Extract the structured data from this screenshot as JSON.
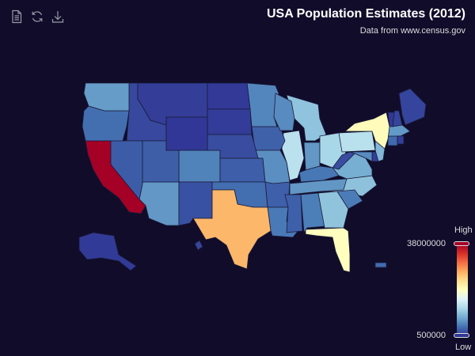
{
  "header": {
    "title": "USA Population Estimates (2012)",
    "subtitle": "Data from www.census.gov"
  },
  "toolbox": [
    {
      "name": "data-view",
      "icon": "document-icon"
    },
    {
      "name": "restore",
      "icon": "refresh-icon"
    },
    {
      "name": "save-image",
      "icon": "download-icon"
    }
  ],
  "visual_map": {
    "high_label": "High",
    "low_label": "Low",
    "max_text": "38000000",
    "min_text": "500000",
    "colors": [
      "#313695",
      "#4575b4",
      "#74add1",
      "#abd9e9",
      "#e0f3f8",
      "#ffffbf",
      "#fee090",
      "#fdae61",
      "#f46d43",
      "#d73027",
      "#a50026"
    ]
  },
  "chart_data": {
    "type": "map",
    "title": "USA Population Estimates (2012)",
    "subtitle": "Data from www.census.gov",
    "visual_map": {
      "min": 500000,
      "max": 38000000,
      "high_label": "High",
      "low_label": "Low"
    },
    "regions": [
      {
        "name": "Alabama",
        "value": 4822023
      },
      {
        "name": "Alaska",
        "value": 731449
      },
      {
        "name": "Arizona",
        "value": 6553255
      },
      {
        "name": "Arkansas",
        "value": 2949131
      },
      {
        "name": "California",
        "value": 38041430
      },
      {
        "name": "Colorado",
        "value": 5187582
      },
      {
        "name": "Connecticut",
        "value": 3590347
      },
      {
        "name": "Delaware",
        "value": 917092
      },
      {
        "name": "Florida",
        "value": 19317568
      },
      {
        "name": "Georgia",
        "value": 9919945
      },
      {
        "name": "Hawaii",
        "value": 1392313
      },
      {
        "name": "Idaho",
        "value": 1595728
      },
      {
        "name": "Illinois",
        "value": 12875255
      },
      {
        "name": "Indiana",
        "value": 6537334
      },
      {
        "name": "Iowa",
        "value": 3074186
      },
      {
        "name": "Kansas",
        "value": 2885905
      },
      {
        "name": "Kentucky",
        "value": 4380415
      },
      {
        "name": "Louisiana",
        "value": 4601893
      },
      {
        "name": "Maine",
        "value": 1329192
      },
      {
        "name": "Maryland",
        "value": 5884563
      },
      {
        "name": "Massachusetts",
        "value": 6646144
      },
      {
        "name": "Michigan",
        "value": 9883360
      },
      {
        "name": "Minnesota",
        "value": 5379139
      },
      {
        "name": "Mississippi",
        "value": 2984926
      },
      {
        "name": "Missouri",
        "value": 6021988
      },
      {
        "name": "Montana",
        "value": 1005141
      },
      {
        "name": "Nebraska",
        "value": 1855525
      },
      {
        "name": "Nevada",
        "value": 2758931
      },
      {
        "name": "New Hampshire",
        "value": 1320718
      },
      {
        "name": "New Jersey",
        "value": 8864590
      },
      {
        "name": "New Mexico",
        "value": 2085538
      },
      {
        "name": "New York",
        "value": 19570261
      },
      {
        "name": "North Carolina",
        "value": 9752073
      },
      {
        "name": "North Dakota",
        "value": 699628
      },
      {
        "name": "Ohio",
        "value": 11544225
      },
      {
        "name": "Oklahoma",
        "value": 3814820
      },
      {
        "name": "Oregon",
        "value": 3899353
      },
      {
        "name": "Pennsylvania",
        "value": 12763536
      },
      {
        "name": "Rhode Island",
        "value": 1050292
      },
      {
        "name": "South Carolina",
        "value": 4723723
      },
      {
        "name": "South Dakota",
        "value": 833354
      },
      {
        "name": "Tennessee",
        "value": 6456243
      },
      {
        "name": "Texas",
        "value": 26059203
      },
      {
        "name": "Utah",
        "value": 2855287
      },
      {
        "name": "Vermont",
        "value": 626011
      },
      {
        "name": "Virginia",
        "value": 8185867
      },
      {
        "name": "Washington",
        "value": 6897012
      },
      {
        "name": "West Virginia",
        "value": 1855413
      },
      {
        "name": "Wisconsin",
        "value": 5726398
      },
      {
        "name": "Wyoming",
        "value": 576412
      },
      {
        "name": "Puerto Rico",
        "value": 3667084
      }
    ]
  }
}
